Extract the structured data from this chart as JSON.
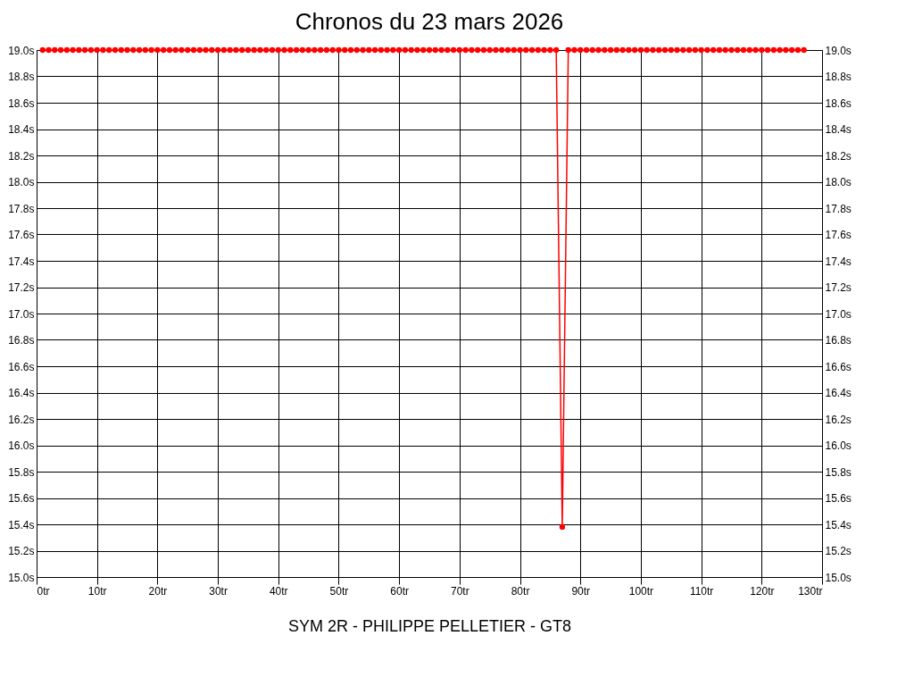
{
  "chart_data": {
    "type": "line",
    "title": "Chronos du 23 mars 2026",
    "xlabel": "SYM 2R - PHILIPPE PELLETIER - GT8",
    "x": [
      1,
      2,
      3,
      4,
      5,
      6,
      7,
      8,
      9,
      10,
      11,
      12,
      13,
      14,
      15,
      16,
      17,
      18,
      19,
      20,
      21,
      22,
      23,
      24,
      25,
      26,
      27,
      28,
      29,
      30,
      31,
      32,
      33,
      34,
      35,
      36,
      37,
      38,
      39,
      40,
      41,
      42,
      43,
      44,
      45,
      46,
      47,
      48,
      49,
      50,
      51,
      52,
      53,
      54,
      55,
      56,
      57,
      58,
      59,
      60,
      61,
      62,
      63,
      64,
      65,
      66,
      67,
      68,
      69,
      70,
      71,
      72,
      73,
      74,
      75,
      76,
      77,
      78,
      79,
      80,
      81,
      82,
      83,
      84,
      85,
      86,
      87,
      88,
      89,
      90,
      91,
      92,
      93,
      94,
      95,
      96,
      97,
      98,
      99,
      100,
      101,
      102,
      103,
      104,
      105,
      106,
      107,
      108,
      109,
      110,
      111,
      112,
      113,
      114,
      115,
      116,
      117,
      118,
      119,
      120,
      121,
      122,
      123,
      124,
      125,
      126,
      127
    ],
    "series": [
      {
        "color": "#ff0000",
        "values": [
          19.0,
          19.0,
          19.0,
          19.0,
          19.0,
          19.0,
          19.0,
          19.0,
          19.0,
          19.0,
          19.0,
          19.0,
          19.0,
          19.0,
          19.0,
          19.0,
          19.0,
          19.0,
          19.0,
          19.0,
          19.0,
          19.0,
          19.0,
          19.0,
          19.0,
          19.0,
          19.0,
          19.0,
          19.0,
          19.0,
          19.0,
          19.0,
          19.0,
          19.0,
          19.0,
          19.0,
          19.0,
          19.0,
          19.0,
          19.0,
          19.0,
          19.0,
          19.0,
          19.0,
          19.0,
          19.0,
          19.0,
          19.0,
          19.0,
          19.0,
          19.0,
          19.0,
          19.0,
          19.0,
          19.0,
          19.0,
          19.0,
          19.0,
          19.0,
          19.0,
          19.0,
          19.0,
          19.0,
          19.0,
          19.0,
          19.0,
          19.0,
          19.0,
          19.0,
          19.0,
          19.0,
          19.0,
          19.0,
          19.0,
          19.0,
          19.0,
          19.0,
          19.0,
          19.0,
          19.0,
          19.0,
          19.0,
          19.0,
          19.0,
          19.0,
          19.0,
          15.38,
          19.0,
          19.0,
          19.0,
          19.0,
          19.0,
          19.0,
          19.0,
          19.0,
          19.0,
          19.0,
          19.0,
          19.0,
          19.0,
          19.0,
          19.0,
          19.0,
          19.0,
          19.0,
          19.0,
          19.0,
          19.0,
          19.0,
          19.0,
          19.0,
          19.0,
          19.0,
          19.0,
          19.0,
          19.0,
          19.0,
          19.0,
          19.0,
          19.0,
          19.0,
          19.0,
          19.0,
          19.0,
          19.0,
          19.0,
          19.0
        ]
      }
    ],
    "marker": "circle",
    "grid": true,
    "xlim": [
      0,
      130
    ],
    "xticks": [
      {
        "value": 0,
        "label": "0tr"
      },
      {
        "value": 10,
        "label": "10tr"
      },
      {
        "value": 20,
        "label": "20tr"
      },
      {
        "value": 30,
        "label": "30tr"
      },
      {
        "value": 40,
        "label": "40tr"
      },
      {
        "value": 50,
        "label": "50tr"
      },
      {
        "value": 60,
        "label": "60tr"
      },
      {
        "value": 70,
        "label": "70tr"
      },
      {
        "value": 80,
        "label": "80tr"
      },
      {
        "value": 90,
        "label": "90tr"
      },
      {
        "value": 100,
        "label": "100tr"
      },
      {
        "value": 110,
        "label": "110tr"
      },
      {
        "value": 120,
        "label": "120tr"
      },
      {
        "value": 130,
        "label": "130tr"
      }
    ],
    "ylim": [
      15.0,
      19.0
    ],
    "yticks": [
      {
        "value": 15.0,
        "label": "15.0s"
      },
      {
        "value": 15.2,
        "label": "15.2s"
      },
      {
        "value": 15.4,
        "label": "15.4s"
      },
      {
        "value": 15.6,
        "label": "15.6s"
      },
      {
        "value": 15.8,
        "label": "15.8s"
      },
      {
        "value": 16.0,
        "label": "16.0s"
      },
      {
        "value": 16.2,
        "label": "16.2s"
      },
      {
        "value": 16.4,
        "label": "16.4s"
      },
      {
        "value": 16.6,
        "label": "16.6s"
      },
      {
        "value": 16.8,
        "label": "16.8s"
      },
      {
        "value": 17.0,
        "label": "17.0s"
      },
      {
        "value": 17.2,
        "label": "17.2s"
      },
      {
        "value": 17.4,
        "label": "17.4s"
      },
      {
        "value": 17.6,
        "label": "17.6s"
      },
      {
        "value": 17.8,
        "label": "17.8s"
      },
      {
        "value": 18.0,
        "label": "18.0s"
      },
      {
        "value": 18.2,
        "label": "18.2s"
      },
      {
        "value": 18.4,
        "label": "18.4s"
      },
      {
        "value": 18.6,
        "label": "18.6s"
      },
      {
        "value": 18.8,
        "label": "18.8s"
      },
      {
        "value": 19.0,
        "label": "19.0s"
      }
    ],
    "y2lim": [
      15.0,
      19.0
    ],
    "y2ticks": [
      {
        "value": 15.0,
        "label": "15.0s"
      },
      {
        "value": 15.2,
        "label": "15.2s"
      },
      {
        "value": 15.4,
        "label": "15.4s"
      },
      {
        "value": 15.6,
        "label": "15.6s"
      },
      {
        "value": 15.8,
        "label": "15.8s"
      },
      {
        "value": 16.0,
        "label": "16.0s"
      },
      {
        "value": 16.2,
        "label": "16.2s"
      },
      {
        "value": 16.4,
        "label": "16.4s"
      },
      {
        "value": 16.6,
        "label": "16.6s"
      },
      {
        "value": 16.8,
        "label": "16.8s"
      },
      {
        "value": 17.0,
        "label": "17.0s"
      },
      {
        "value": 17.2,
        "label": "17.2s"
      },
      {
        "value": 17.4,
        "label": "17.4s"
      },
      {
        "value": 17.6,
        "label": "17.6s"
      },
      {
        "value": 17.8,
        "label": "17.8s"
      },
      {
        "value": 18.0,
        "label": "18.0s"
      },
      {
        "value": 18.2,
        "label": "18.2s"
      },
      {
        "value": 18.4,
        "label": "18.4s"
      },
      {
        "value": 18.6,
        "label": "18.6s"
      },
      {
        "value": 18.8,
        "label": "18.8s"
      },
      {
        "value": 19.0,
        "label": "19.0s"
      }
    ]
  }
}
